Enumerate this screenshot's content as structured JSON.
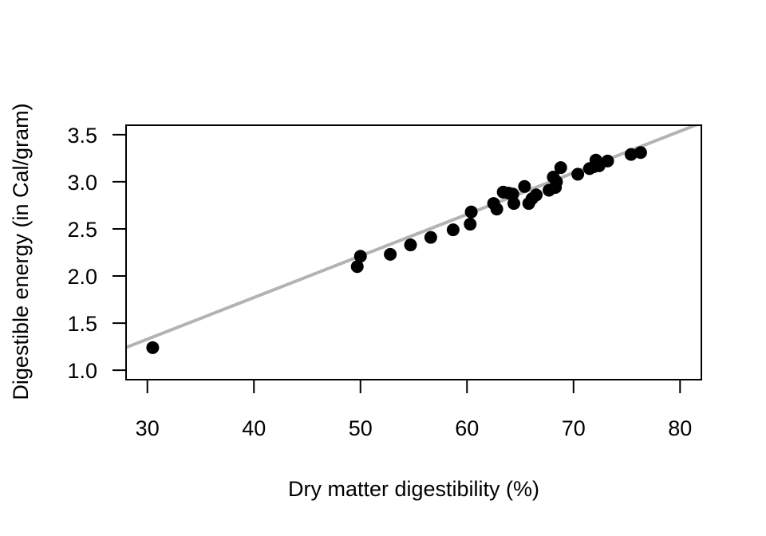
{
  "chart_data": {
    "type": "scatter",
    "xlabel": "Dry matter digestibility (%)",
    "ylabel": "Digestible energy (in Cal/gram)",
    "xlim": [
      28,
      82
    ],
    "ylim": [
      0.9,
      3.6
    ],
    "x_ticks": [
      30,
      40,
      50,
      60,
      70,
      80
    ],
    "y_ticks": [
      1.0,
      1.5,
      2.0,
      2.5,
      3.0,
      3.5
    ],
    "x_tick_labels": [
      "30",
      "40",
      "50",
      "60",
      "70",
      "80"
    ],
    "y_tick_labels": [
      "1.0",
      "1.5",
      "2.0",
      "2.5",
      "3.0",
      "3.5"
    ],
    "grid": false,
    "point_color": "#000000",
    "line_color": "#b3b3b3",
    "series": [
      {
        "points": [
          {
            "x": 30.5,
            "y": 1.24
          },
          {
            "x": 49.7,
            "y": 2.1
          },
          {
            "x": 50.0,
            "y": 2.21
          },
          {
            "x": 52.8,
            "y": 2.23
          },
          {
            "x": 54.7,
            "y": 2.33
          },
          {
            "x": 56.6,
            "y": 2.41
          },
          {
            "x": 58.7,
            "y": 2.49
          },
          {
            "x": 60.3,
            "y": 2.55
          },
          {
            "x": 60.4,
            "y": 2.68
          },
          {
            "x": 62.5,
            "y": 2.77
          },
          {
            "x": 62.8,
            "y": 2.71
          },
          {
            "x": 63.4,
            "y": 2.89
          },
          {
            "x": 63.9,
            "y": 2.88
          },
          {
            "x": 64.3,
            "y": 2.87
          },
          {
            "x": 64.4,
            "y": 2.77
          },
          {
            "x": 65.4,
            "y": 2.95
          },
          {
            "x": 65.8,
            "y": 2.77
          },
          {
            "x": 66.1,
            "y": 2.82
          },
          {
            "x": 66.5,
            "y": 2.86
          },
          {
            "x": 67.7,
            "y": 2.91
          },
          {
            "x": 68.1,
            "y": 3.05
          },
          {
            "x": 68.3,
            "y": 2.94
          },
          {
            "x": 68.4,
            "y": 3.0
          },
          {
            "x": 68.8,
            "y": 3.15
          },
          {
            "x": 70.4,
            "y": 3.08
          },
          {
            "x": 71.5,
            "y": 3.14
          },
          {
            "x": 71.9,
            "y": 3.16
          },
          {
            "x": 72.1,
            "y": 3.23
          },
          {
            "x": 72.4,
            "y": 3.17
          },
          {
            "x": 73.2,
            "y": 3.22
          },
          {
            "x": 75.4,
            "y": 3.29
          },
          {
            "x": 76.3,
            "y": 3.31
          }
        ]
      }
    ],
    "fit_line": {
      "intercept": 0.0063,
      "slope": 0.04413
    }
  }
}
